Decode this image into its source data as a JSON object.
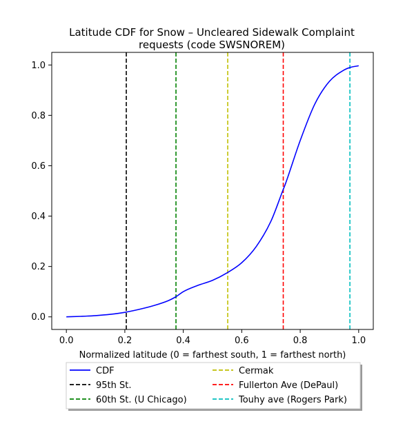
{
  "chart_data": {
    "type": "line",
    "title_lines": [
      "Latitude CDF for Snow – Uncleared Sidewalk Complaint",
      "requests (code SWSNOREM)"
    ],
    "xlabel": "Normalized latitude (0 = farthest south, 1 = farthest north)",
    "ylabel": "",
    "xlim": [
      -0.05,
      1.05
    ],
    "ylim": [
      -0.05,
      1.05
    ],
    "xticks": [
      0.0,
      0.2,
      0.4,
      0.6,
      0.8,
      1.0
    ],
    "xtick_labels": [
      "0.0",
      "0.2",
      "0.4",
      "0.6",
      "0.8",
      "1.0"
    ],
    "yticks": [
      0.0,
      0.2,
      0.4,
      0.6,
      0.8,
      1.0
    ],
    "ytick_labels": [
      "0.0",
      "0.2",
      "0.4",
      "0.6",
      "0.8",
      "1.0"
    ],
    "grid": false,
    "legend_placement": "below plot, two columns",
    "series": [
      {
        "name": "CDF",
        "color": "#0000ff",
        "style": "solid",
        "x": [
          0.0,
          0.05,
          0.1,
          0.15,
          0.2,
          0.25,
          0.3,
          0.35,
          0.375,
          0.4,
          0.45,
          0.5,
          0.55,
          0.6,
          0.65,
          0.7,
          0.74,
          0.75,
          0.8,
          0.85,
          0.9,
          0.95,
          0.97,
          1.0
        ],
        "y": [
          0.0,
          0.002,
          0.005,
          0.01,
          0.018,
          0.03,
          0.045,
          0.065,
          0.08,
          0.1,
          0.125,
          0.145,
          0.175,
          0.215,
          0.28,
          0.38,
          0.5,
          0.53,
          0.7,
          0.845,
          0.935,
          0.98,
          0.99,
          0.997
        ]
      }
    ],
    "vlines": [
      {
        "name": "95th St.",
        "x": 0.205,
        "color": "#000000"
      },
      {
        "name": "60th St. (U Chicago)",
        "x": 0.375,
        "color": "#008000"
      },
      {
        "name": "Cermak",
        "x": 0.552,
        "color": "#bfbf00"
      },
      {
        "name": "Fullerton Ave (DePaul)",
        "x": 0.742,
        "color": "#ff0000"
      },
      {
        "name": "Touhy ave (Rogers Park)",
        "x": 0.97,
        "color": "#00bfbf"
      }
    ]
  }
}
